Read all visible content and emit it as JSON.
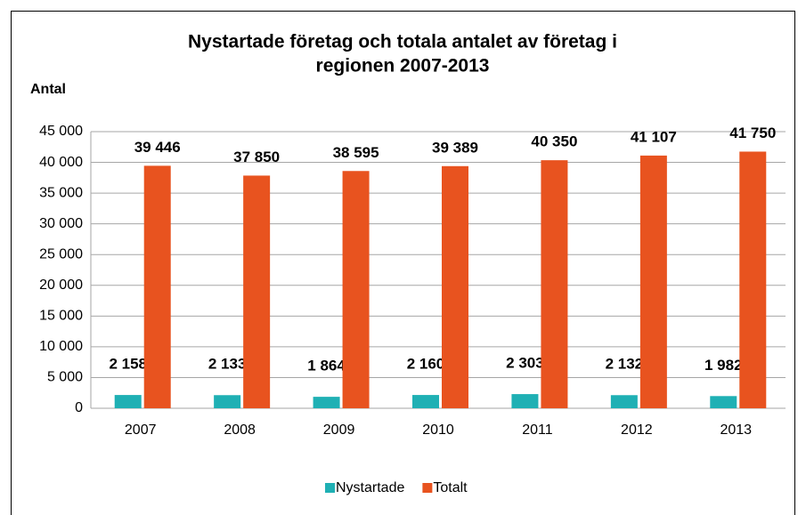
{
  "chart_data": {
    "type": "bar",
    "title": [
      "Nystartade företag och totala antalet av företag  i",
      "regionen 2007-2013"
    ],
    "y_label": "Antal",
    "categories": [
      "2007",
      "2008",
      "2009",
      "2010",
      "2011",
      "2012",
      "2013"
    ],
    "series": [
      {
        "name": "Nystartade",
        "color": "#1fb0b4",
        "values": [
          2158,
          2133,
          1864,
          2160,
          2303,
          2132,
          1982
        ],
        "value_labels": [
          "2 158",
          "2 133",
          "1 864",
          "2 160",
          "2 303",
          "2 132",
          "1 982"
        ]
      },
      {
        "name": "Totalt",
        "color": "#e8531f",
        "values": [
          39446,
          37850,
          38595,
          39389,
          40350,
          41107,
          41750
        ],
        "value_labels": [
          "39 446",
          "37 850",
          "38 595",
          "39 389",
          "40 350",
          "41 107",
          "41 750"
        ]
      }
    ],
    "ylim": [
      0,
      45000
    ],
    "yticks": [
      {
        "value": 0,
        "label": "0"
      },
      {
        "value": 5000,
        "label": "5 000"
      },
      {
        "value": 10000,
        "label": "10 000"
      },
      {
        "value": 15000,
        "label": "15 000"
      },
      {
        "value": 20000,
        "label": "20 000"
      },
      {
        "value": 25000,
        "label": "25 000"
      },
      {
        "value": 30000,
        "label": "30 000"
      },
      {
        "value": 35000,
        "label": "35 000"
      },
      {
        "value": 40000,
        "label": "40 000"
      },
      {
        "value": 45000,
        "label": "45 000"
      }
    ],
    "grid": true,
    "legend": "bottom"
  }
}
